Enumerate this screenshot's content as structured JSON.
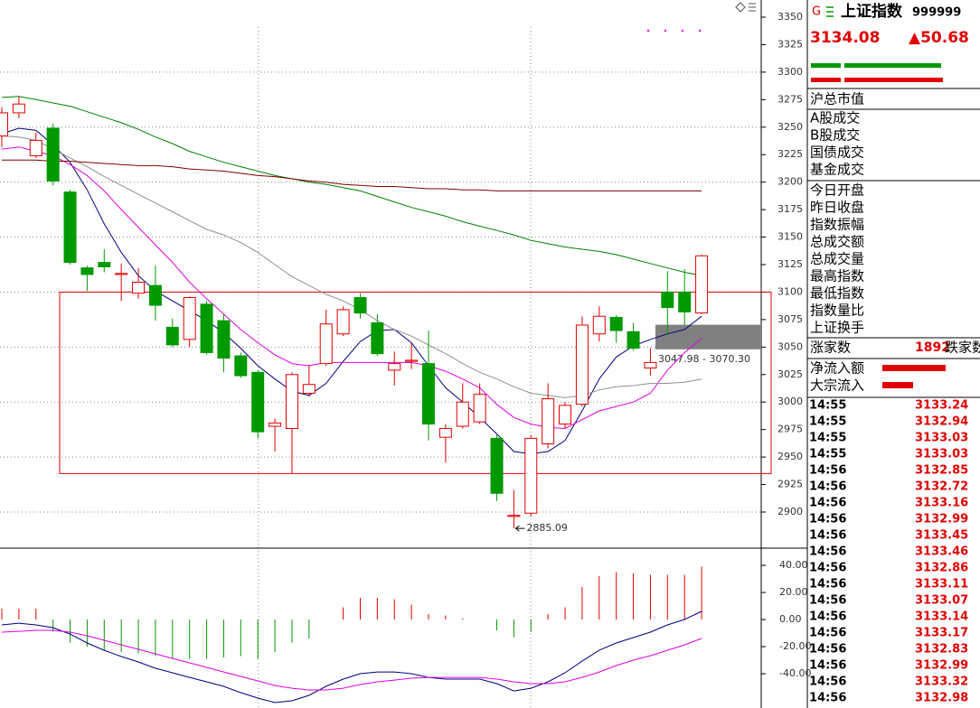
{
  "chart_data": [
    {
      "type": "candlestick",
      "open": [
        3242,
        3263,
        3224,
        3249,
        3191,
        3122,
        3127,
        3116,
        3099,
        3106,
        3068,
        3057,
        3089,
        3074,
        3042,
        3027,
        2978,
        2976,
        3008,
        3035,
        3062,
        3095,
        3072,
        3029,
        3037,
        3035,
        2968,
        2978,
        2982,
        2967,
        2896,
        2899,
        2962,
        2980,
        2998,
        3062,
        3077,
        3064,
        3031,
        3100,
        3100,
        3081
      ],
      "high": [
        3268,
        3278,
        3245,
        3253,
        3193,
        3124,
        3139,
        3126,
        3122,
        3124,
        3076,
        3096,
        3092,
        3080,
        3045,
        3029,
        2985,
        3027,
        3034,
        3084,
        3087,
        3099,
        3080,
        3046,
        3054,
        3065,
        2980,
        3017,
        3017,
        2970,
        2920,
        2970,
        3017,
        3000,
        3078,
        3087,
        3079,
        3072,
        3049,
        3119,
        3121,
        3134.08
      ],
      "low": [
        3232,
        3258,
        3222,
        3197,
        3125,
        3101,
        3118,
        3092,
        3094,
        3074,
        3050,
        3050,
        3043,
        3027,
        3022,
        2967,
        2955,
        2935,
        3005,
        3033,
        3060,
        3076,
        3042,
        3015,
        3030,
        2965,
        2945,
        2976,
        2980,
        2910,
        2885.09,
        2896,
        2958,
        2976,
        2996,
        3055,
        3054,
        3047,
        3024,
        3061,
        3070,
        3080
      ],
      "close": [
        3263,
        3271,
        3238,
        3201,
        3127,
        3116,
        3123,
        3117,
        3109,
        3088,
        3052,
        3095,
        3045,
        3040,
        3024,
        2973,
        2981,
        3025,
        3016,
        3071,
        3084,
        3081,
        3044,
        3035,
        3038,
        2980,
        2976,
        3000,
        3007,
        2917,
        2897,
        2967,
        3003,
        2997,
        3070,
        3078,
        3065,
        3049,
        3036,
        3086,
        3082,
        3133
      ],
      "up_color": "#e00000",
      "down_color": "#009a00",
      "lines": [
        {
          "color": "#000080",
          "values": [
            3244,
            3249,
            3247,
            3234,
            3218,
            3193,
            3162,
            3136,
            3115,
            3101,
            3092,
            3083,
            3074,
            3063,
            3049,
            3033,
            3021,
            3010,
            3006,
            3017,
            3037,
            3055,
            3065,
            3066,
            3054,
            3033,
            3013,
            3000,
            2986,
            2971,
            2955,
            2953,
            2955,
            2965,
            2992,
            3021,
            3041,
            3051,
            3057,
            3062,
            3066,
            3078
          ]
        },
        {
          "color": "#e000e0",
          "values": [
            3230,
            3232,
            3228,
            3224,
            3216,
            3206,
            3192,
            3175,
            3159,
            3143,
            3127,
            3109,
            3094,
            3080,
            3066,
            3054,
            3043,
            3035,
            3033,
            3036,
            3036,
            3036,
            3036,
            3036,
            3036,
            3033,
            3028,
            3021,
            3013,
            2998,
            2986,
            2980,
            2977,
            2976,
            2984,
            2992,
            2996,
            3000,
            3008,
            3029,
            3045,
            3058
          ]
        },
        {
          "color": "#909090",
          "values": [
            3242,
            3241,
            3238,
            3230,
            3222,
            3214,
            3205,
            3197,
            3189,
            3181,
            3173,
            3165,
            3157,
            3152,
            3145,
            3136,
            3125,
            3114,
            3106,
            3098,
            3092,
            3084,
            3074,
            3066,
            3060,
            3052,
            3044,
            3035,
            3027,
            3021,
            3014,
            3008,
            3006,
            3004,
            3006,
            3011,
            3014,
            3015,
            3017,
            3017,
            3018,
            3021
          ]
        },
        {
          "color": "#008000",
          "values": [
            3277,
            3278,
            3275,
            3272,
            3269,
            3264,
            3259,
            3254,
            3248,
            3241,
            3235,
            3228,
            3223,
            3218,
            3214,
            3210,
            3206,
            3203,
            3200,
            3198,
            3195,
            3192,
            3187,
            3182,
            3177,
            3173,
            3169,
            3164,
            3160,
            3156,
            3152,
            3147,
            3144,
            3141,
            3139,
            3137,
            3134,
            3130,
            3126,
            3122,
            3118,
            3115
          ]
        },
        {
          "color": "#800000",
          "values": [
            3220,
            3220,
            3220,
            3219,
            3219,
            3218,
            3217,
            3216,
            3215,
            3215,
            3214,
            3212,
            3211,
            3210,
            3208,
            3206,
            3205,
            3203,
            3201,
            3200,
            3198,
            3197,
            3196,
            3196,
            3195,
            3194,
            3194,
            3193,
            3193,
            3192,
            3192,
            3192,
            3192,
            3192,
            3192,
            3192,
            3192,
            3192,
            3192,
            3192,
            3192,
            3192
          ]
        }
      ],
      "box": {
        "low": 2935,
        "high": 3100,
        "color": "#e00000"
      },
      "zone": {
        "low": 3047.98,
        "high": 3070.3,
        "label": "3047.98 - 3070.30",
        "color": "#808080"
      },
      "ylim": [
        2868.8,
        3365.6
      ],
      "yticks": [
        3350,
        3325,
        3300,
        3275,
        3250,
        3225,
        3200,
        3175,
        3150,
        3125,
        3100,
        3075,
        3050,
        3025,
        3000,
        2975,
        2950,
        2925,
        2900
      ],
      "grid": true
    },
    {
      "type": "macd",
      "bars": [
        8,
        8,
        8,
        -9,
        -17,
        -20,
        -23,
        -24,
        -25,
        -27,
        -29,
        -29,
        -29,
        -28,
        -27,
        -29,
        -24,
        -17,
        -14,
        0,
        9,
        16,
        16,
        15,
        11,
        4,
        3,
        1,
        0,
        -8,
        -13,
        -9,
        4,
        9,
        24,
        32,
        35,
        34,
        33,
        33,
        33,
        39
      ],
      "up_color": "#e00000",
      "down_color": "#009a00",
      "lines": [
        {
          "color": "#000080",
          "values": [
            -4,
            -2.7,
            -4,
            -6,
            -10.7,
            -17.3,
            -22.7,
            -27.3,
            -31.3,
            -36,
            -39.3,
            -42.7,
            -46,
            -49.3,
            -54,
            -58,
            -61.3,
            -60,
            -56,
            -49.3,
            -44,
            -40,
            -38.7,
            -38.7,
            -40,
            -42.7,
            -44,
            -44,
            -44,
            -47.3,
            -52.7,
            -50.7,
            -46,
            -39.3,
            -30.7,
            -22.7,
            -17.3,
            -13.3,
            -9.3,
            -4,
            0,
            6
          ]
        },
        {
          "color": "#e000e0",
          "values": [
            -9.3,
            -8.7,
            -8,
            -8,
            -9.3,
            -12,
            -15.3,
            -18.7,
            -22,
            -25.3,
            -28.7,
            -32,
            -35.3,
            -38.7,
            -42,
            -45.3,
            -48.7,
            -50.7,
            -52,
            -52,
            -50.7,
            -48,
            -46,
            -44.7,
            -43.3,
            -42.7,
            -42.7,
            -42.7,
            -42.7,
            -44,
            -46,
            -47.3,
            -47.3,
            -46,
            -42.7,
            -38.7,
            -34,
            -30,
            -26.7,
            -22.7,
            -18.7,
            -14
          ]
        }
      ],
      "ylim": [
        -65.3,
        50.7
      ],
      "yticks": [
        {
          "value": 40,
          "label": "40.00"
        },
        {
          "value": 20,
          "label": "20.00"
        },
        {
          "value": 0,
          "label": "0.00"
        },
        {
          "value": -20,
          "label": "-20.00"
        },
        {
          "value": -40,
          "label": "-40.00"
        }
      ]
    }
  ],
  "side_panel": {
    "badge": "G",
    "title": "上证指数",
    "code": "999999",
    "price": "3134.08",
    "change": "▲50.68",
    "fields": [
      [
        "沪总市值"
      ],
      [
        "A股成交",
        "B股成交",
        "国债成交",
        "基金成交"
      ],
      [
        "今日开盘",
        "昨日收盘",
        "指数振幅",
        "总成交额",
        "总成交量",
        "最高指数",
        "最低指数",
        "指数量比",
        "上证换手"
      ]
    ],
    "rise_label": "涨家数",
    "rise_count": "1892",
    "fall_label": "跌家数",
    "flow_labels": [
      "净流入额",
      "大宗流入"
    ],
    "trades": [
      [
        "14:55",
        "3133.24"
      ],
      [
        "14:55",
        "3132.94"
      ],
      [
        "14:55",
        "3133.03"
      ],
      [
        "14:55",
        "3133.03"
      ],
      [
        "14:56",
        "3132.85"
      ],
      [
        "14:56",
        "3132.72"
      ],
      [
        "14:56",
        "3133.16"
      ],
      [
        "14:56",
        "3132.99"
      ],
      [
        "14:56",
        "3133.45"
      ],
      [
        "14:56",
        "3133.46"
      ],
      [
        "14:56",
        "3132.86"
      ],
      [
        "14:56",
        "3133.11"
      ],
      [
        "14:56",
        "3133.07"
      ],
      [
        "14:56",
        "3133.14"
      ],
      [
        "14:56",
        "3133.17"
      ],
      [
        "14:56",
        "3132.83"
      ],
      [
        "14:56",
        "3132.99"
      ],
      [
        "14:56",
        "3133.32"
      ],
      [
        "14:56",
        "3132.98"
      ]
    ]
  }
}
